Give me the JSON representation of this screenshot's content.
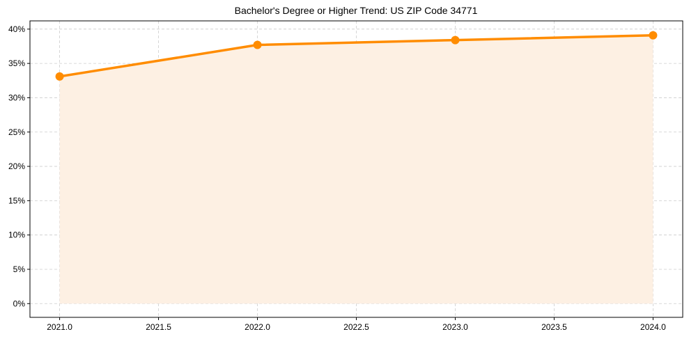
{
  "chart_data": {
    "type": "line",
    "title": "Bachelor's Degree or Higher Trend: US ZIP Code 34771",
    "xlabel": "",
    "ylabel": "",
    "x": [
      2021.0,
      2022.0,
      2023.0,
      2024.0
    ],
    "series": [
      {
        "name": "Bachelor's Degree or Higher",
        "values": [
          33.1,
          37.7,
          38.4,
          39.1
        ],
        "color": "#ff8c00",
        "fill": "#fdf0e3",
        "marker": "circle"
      }
    ],
    "x_ticks": [
      "2021.0",
      "2021.5",
      "2022.0",
      "2022.5",
      "2023.0",
      "2023.5",
      "2024.0"
    ],
    "y_ticks": [
      "0%",
      "5%",
      "10%",
      "15%",
      "20%",
      "25%",
      "30%",
      "35%",
      "40%"
    ],
    "xlim": [
      2020.85,
      2024.15
    ],
    "ylim": [
      -2,
      41.2
    ],
    "grid": true,
    "legend": null
  }
}
